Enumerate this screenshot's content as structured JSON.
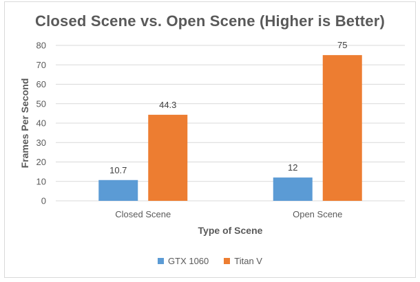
{
  "chart_data": {
    "type": "bar",
    "title": "Closed Scene vs. Open Scene (Higher is Better)",
    "xlabel": "Type of Scene",
    "ylabel": "Frames Per Second",
    "categories": [
      "Closed Scene",
      "Open Scene"
    ],
    "series": [
      {
        "name": "GTX 1060",
        "values": [
          10.7,
          12
        ],
        "labels": [
          "10.7",
          "12"
        ],
        "color": "#5b9bd5"
      },
      {
        "name": "Titan V",
        "values": [
          44.3,
          75
        ],
        "labels": [
          "44.3",
          "75"
        ],
        "color": "#ed7d31"
      }
    ],
    "ylim": [
      0,
      80
    ],
    "yticks": [
      "0",
      "10",
      "20",
      "30",
      "40",
      "50",
      "60",
      "70",
      "80"
    ],
    "grid": true,
    "legend_position": "bottom"
  }
}
